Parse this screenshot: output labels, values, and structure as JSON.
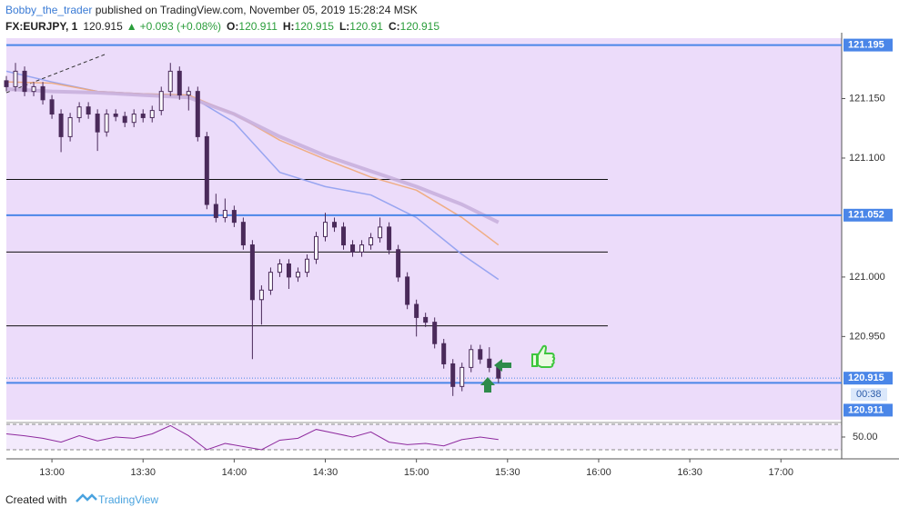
{
  "header": {
    "author": "Bobby_the_trader",
    "published": " published on TradingView.com, November 05, 2019 15:28:24 MSK",
    "symbol": "FX:EURJPY, 1",
    "last": 120.915,
    "arrow": "▲",
    "change": "+0.093 (+0.08%)",
    "ohlc": [
      {
        "label": "O:",
        "value": 120.911
      },
      {
        "label": "H:",
        "value": 120.915
      },
      {
        "label": "L:",
        "value": 120.91
      },
      {
        "label": "C:",
        "value": 120.915
      }
    ]
  },
  "chart_data": {
    "type": "candlestick",
    "xlim": [
      "12:45",
      "17:20"
    ],
    "ylim": [
      120.88,
      121.2008
    ],
    "xticks": [
      "13:00",
      "13:30",
      "14:00",
      "14:30",
      "15:00",
      "15:30",
      "16:00",
      "16:30",
      "17:00"
    ],
    "yticks": [
      {
        "value": 120.95,
        "label": "120.950"
      },
      {
        "value": 121,
        "label": "121.000"
      },
      {
        "value": 121.1,
        "label": "121.100"
      },
      {
        "value": 121.15,
        "label": "121.150"
      }
    ],
    "candles": {
      "x": [
        "12:45",
        "12:48",
        "12:51",
        "12:54",
        "12:57",
        "13:00",
        "13:03",
        "13:06",
        "13:09",
        "13:12",
        "13:15",
        "13:18",
        "13:21",
        "13:24",
        "13:27",
        "13:30",
        "13:33",
        "13:36",
        "13:39",
        "13:42",
        "13:45",
        "13:48",
        "13:51",
        "13:54",
        "13:57",
        "14:00",
        "14:03",
        "14:06",
        "14:09",
        "14:12",
        "14:15",
        "14:18",
        "14:21",
        "14:24",
        "14:27",
        "14:30",
        "14:33",
        "14:36",
        "14:39",
        "14:42",
        "14:45",
        "14:48",
        "14:51",
        "14:54",
        "14:57",
        "15:00",
        "15:03",
        "15:06",
        "15:09",
        "15:12",
        "15:15",
        "15:18",
        "15:21",
        "15:24",
        "15:27"
      ],
      "open": [
        121.165,
        121.16,
        121.173,
        121.156,
        121.16,
        121.149,
        121.137,
        121.118,
        121.134,
        121.143,
        121.137,
        121.122,
        121.137,
        121.135,
        121.13,
        121.137,
        121.134,
        121.14,
        121.156,
        121.173,
        121.153,
        121.156,
        121.118,
        121.061,
        121.05,
        121.056,
        121.046,
        121.027,
        120.981,
        120.989,
        121.004,
        121.011,
        121,
        121.004,
        121.015,
        121.034,
        121.046,
        121.042,
        121.027,
        121.021,
        121.027,
        121.033,
        121.042,
        121.023,
        121,
        120.977,
        120.966,
        120.962,
        120.944,
        120.927,
        120.908,
        120.924,
        120.939,
        120.931,
        120.924
      ],
      "high": [
        121.169,
        121.18,
        121.177,
        121.164,
        121.164,
        121.153,
        121.141,
        121.138,
        121.147,
        121.147,
        121.141,
        121.141,
        121.141,
        121.139,
        121.141,
        121.141,
        121.144,
        121.16,
        121.18,
        121.177,
        121.16,
        121.16,
        121.122,
        121.07,
        121.066,
        121.06,
        121.05,
        121.031,
        120.993,
        121.008,
        121.015,
        121.015,
        121.008,
        121.019,
        121.038,
        121.054,
        121.05,
        121.046,
        121.031,
        121.031,
        121.037,
        121.05,
        121.046,
        121.027,
        121.004,
        120.981,
        120.97,
        120.966,
        120.948,
        120.931,
        120.928,
        120.943,
        120.943,
        120.941,
        120.928
      ],
      "low": [
        121.156,
        121.156,
        121.152,
        121.152,
        121.145,
        121.133,
        121.105,
        121.114,
        121.13,
        121.133,
        121.106,
        121.118,
        121.131,
        121.126,
        121.126,
        121.13,
        121.13,
        121.136,
        121.152,
        121.149,
        121.14,
        121.114,
        121.057,
        121.046,
        121.046,
        121.042,
        121.023,
        120.931,
        120.96,
        120.985,
        121,
        120.99,
        120.996,
        121,
        121.011,
        121.03,
        121.038,
        121.023,
        121.017,
        121.017,
        121.023,
        121.029,
        121.019,
        120.996,
        120.973,
        120.95,
        120.958,
        120.94,
        120.923,
        120.9,
        120.904,
        120.92,
        120.927,
        120.92,
        120.911
      ],
      "close": [
        121.16,
        121.173,
        121.156,
        121.16,
        121.149,
        121.137,
        121.118,
        121.134,
        121.143,
        121.137,
        121.122,
        121.137,
        121.135,
        121.13,
        121.137,
        121.134,
        121.14,
        121.156,
        121.173,
        121.153,
        121.156,
        121.118,
        121.061,
        121.05,
        121.056,
        121.046,
        121.027,
        120.981,
        120.989,
        121.004,
        121.011,
        121,
        121.004,
        121.015,
        121.034,
        121.046,
        121.042,
        121.027,
        121.021,
        121.027,
        121.033,
        121.042,
        121.023,
        121,
        120.977,
        120.966,
        120.962,
        120.944,
        120.927,
        120.908,
        120.924,
        120.939,
        120.931,
        120.924,
        120.915
      ],
      "up_color": "#ffffff",
      "down_color": "#4a2a5a",
      "wick_color": "#4a2a5a"
    },
    "series": [
      {
        "color": "#8f9ff0",
        "width": 1.5,
        "x": [
          "12:45",
          "13:00",
          "13:15",
          "13:30",
          "13:45",
          "14:00",
          "14:15",
          "14:30",
          "14:45",
          "15:00",
          "15:15",
          "15:27"
        ],
        "values": [
          121.173,
          121.164,
          121.156,
          121.154,
          121.153,
          121.13,
          121.088,
          121.076,
          121.069,
          121.05,
          121.019,
          120.998
        ]
      },
      {
        "color": "#f0a878",
        "width": 1.5,
        "x": [
          "12:45",
          "13:00",
          "13:15",
          "13:30",
          "13:45",
          "14:00",
          "14:15",
          "14:30",
          "14:45",
          "15:00",
          "15:15",
          "15:27"
        ],
        "values": [
          121.164,
          121.163,
          121.156,
          121.154,
          121.153,
          121.137,
          121.115,
          121.099,
          121.084,
          121.073,
          121.05,
          121.027
        ]
      },
      {
        "color": "#c9b0dd",
        "width": 4,
        "x": [
          "12:45",
          "13:00",
          "13:15",
          "13:30",
          "13:45",
          "14:00",
          "14:15",
          "14:30",
          "14:45",
          "15:00",
          "15:15",
          "15:27"
        ],
        "values": [
          121.158,
          121.156,
          121.155,
          121.153,
          121.151,
          121.137,
          121.118,
          121.102,
          121.089,
          121.076,
          121.061,
          121.046
        ]
      }
    ],
    "levels": [
      121.195,
      121.052,
      120.911
    ],
    "level_color": "#4a86e8",
    "lines": [
      {
        "value": 121.082,
        "end": "16:03"
      },
      {
        "value": 121.021,
        "end": "16:03"
      },
      {
        "value": 120.959,
        "end": "16:03"
      }
    ],
    "last_price": 120.915,
    "countdown": "00:38",
    "rsi": {
      "color": "#8e2a9e",
      "ylim": [
        15.7,
        77.1
      ],
      "levels": [
        70,
        30
      ],
      "yticks": [
        {
          "value": 50,
          "label": "50.00"
        }
      ],
      "x": [
        "12:45",
        "12:51",
        "12:57",
        "13:03",
        "13:09",
        "13:15",
        "13:21",
        "13:27",
        "13:33",
        "13:39",
        "13:45",
        "13:51",
        "13:57",
        "14:03",
        "14:09",
        "14:15",
        "14:21",
        "14:27",
        "14:33",
        "14:39",
        "14:45",
        "14:51",
        "14:57",
        "15:03",
        "15:09",
        "15:15",
        "15:21",
        "15:27"
      ],
      "values": [
        55,
        52,
        48,
        42,
        52,
        44,
        50,
        48,
        55,
        68,
        52,
        30,
        40,
        35,
        30,
        45,
        48,
        62,
        56,
        50,
        58,
        42,
        38,
        40,
        36,
        46,
        50,
        46
      ]
    }
  },
  "footer": {
    "created": "Created with",
    "brand": "TradingView"
  }
}
